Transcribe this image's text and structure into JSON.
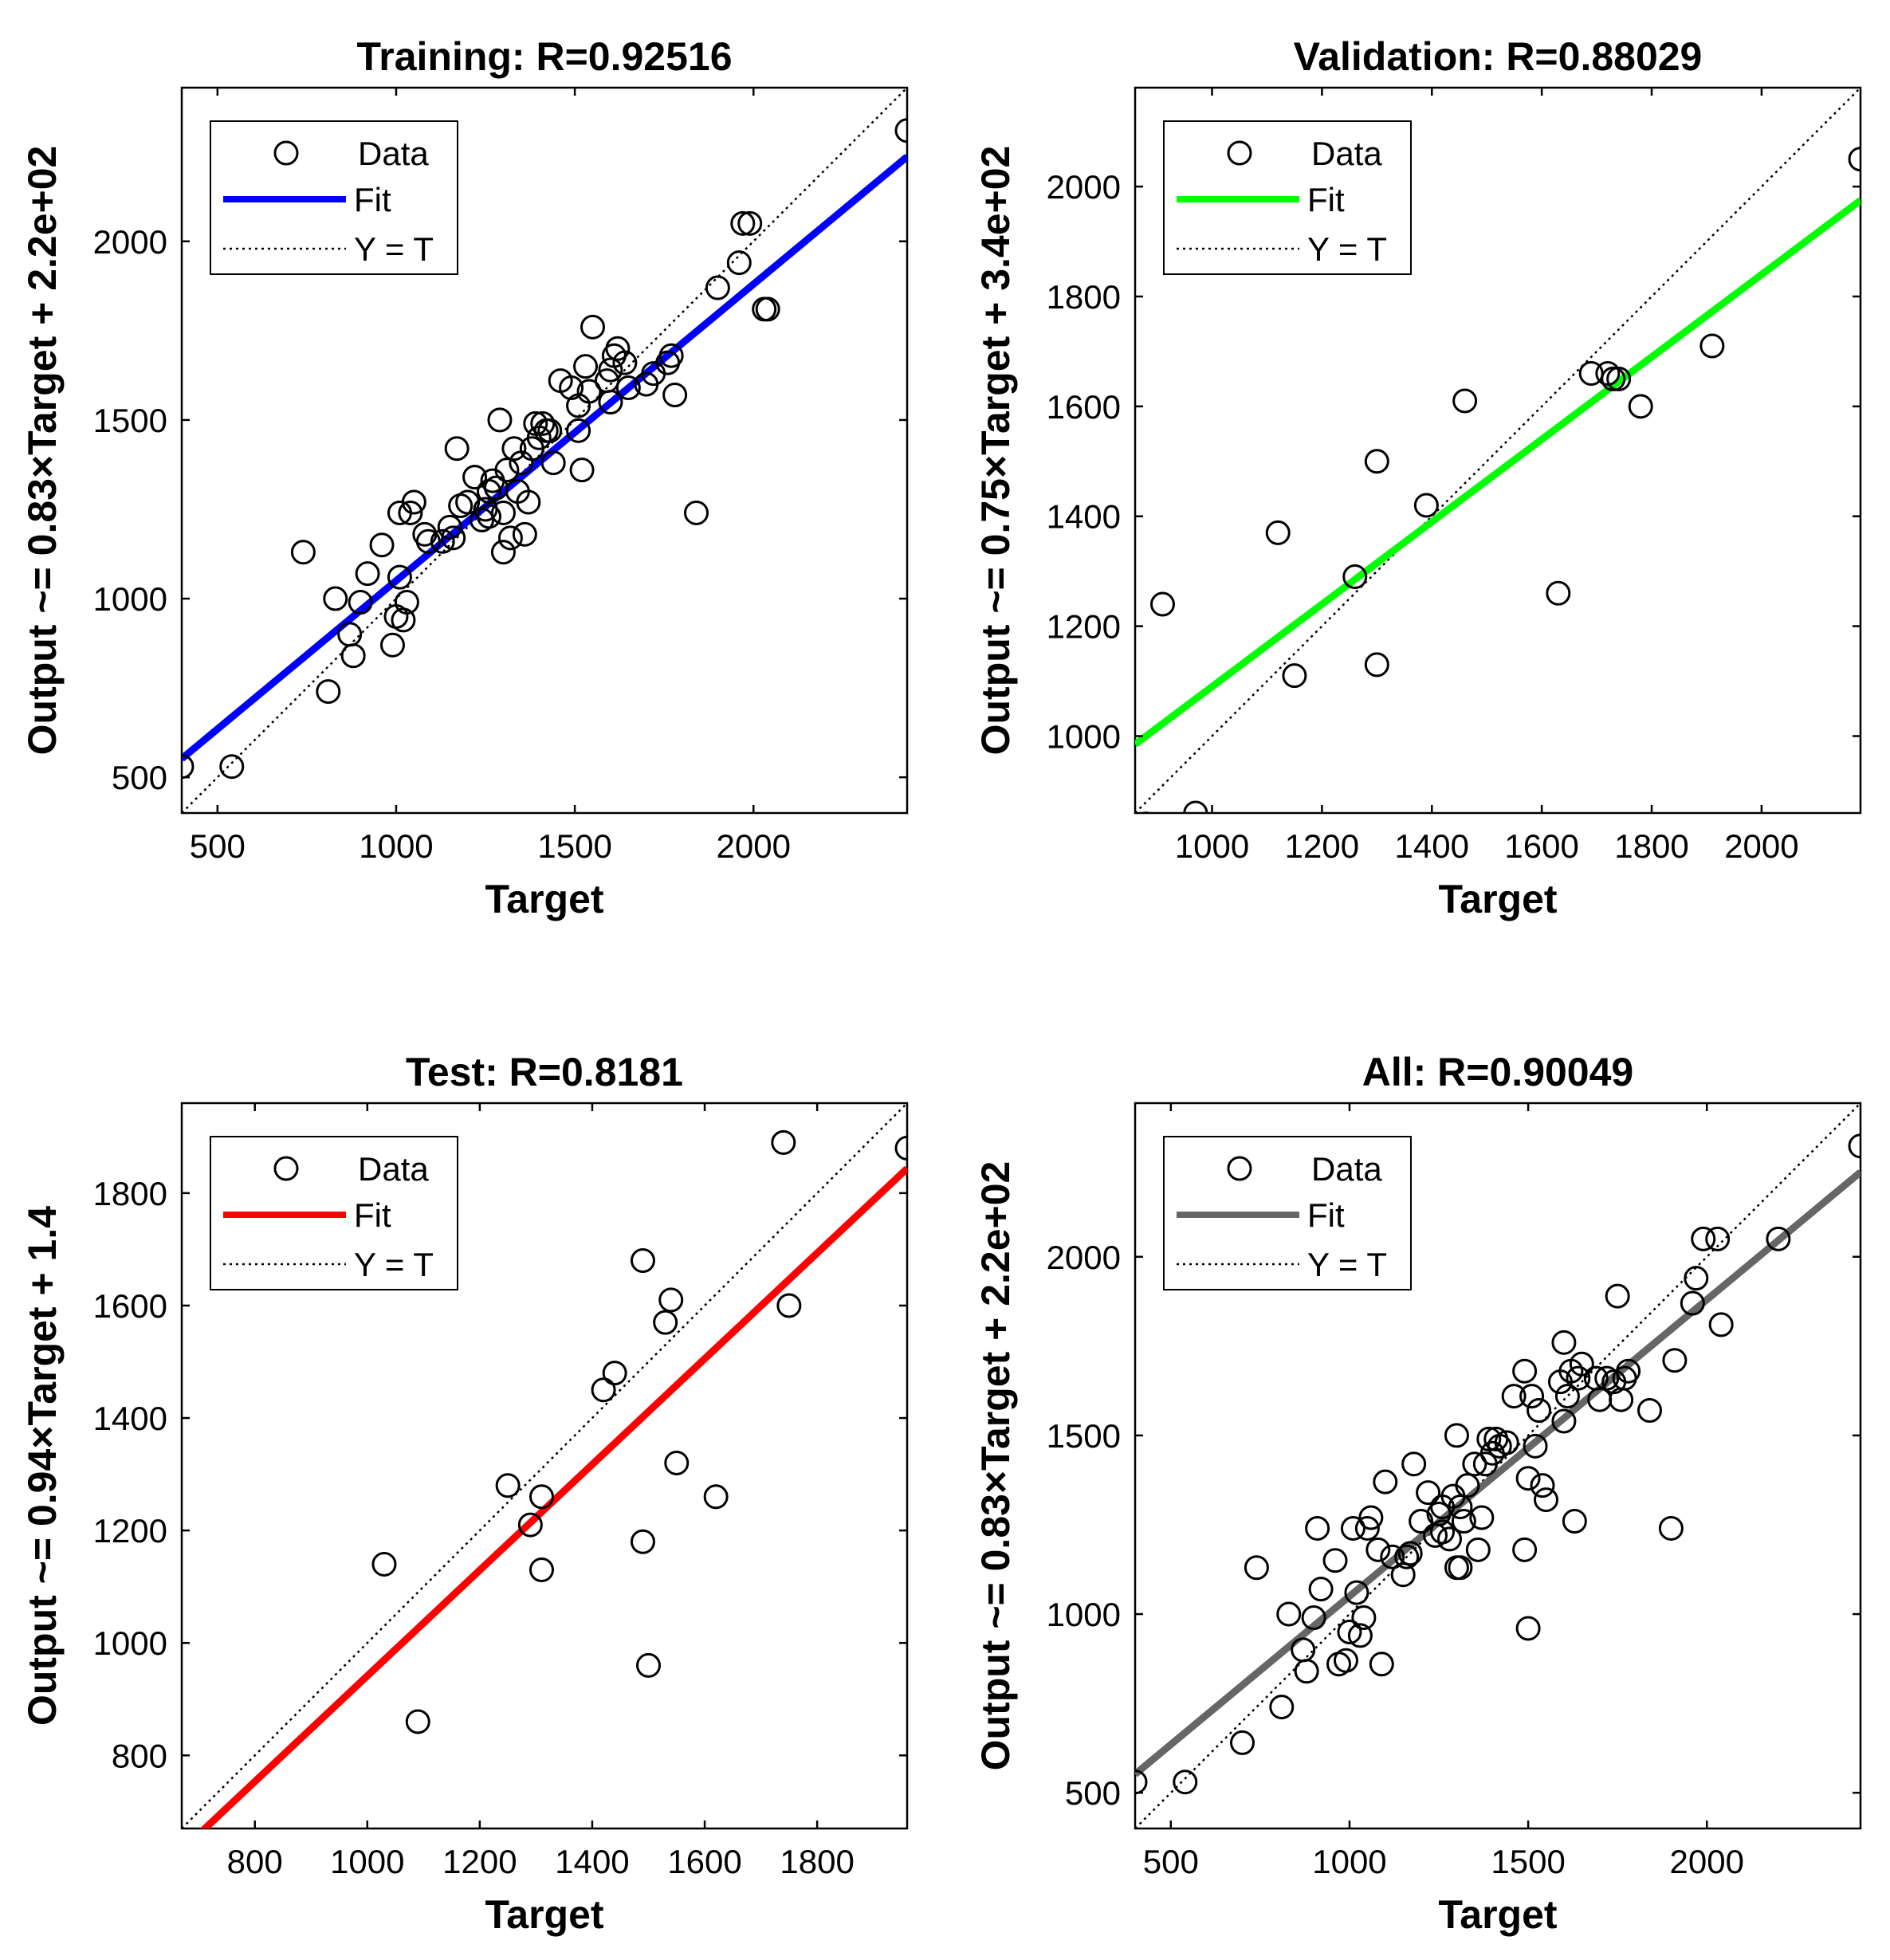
{
  "chart_data": [
    {
      "type": "scatter",
      "title": "Training: R=0.92516",
      "xlabel": "Target",
      "ylabel": "Output ~= 0.83×Target + 2.2e+02",
      "xlim": [
        400,
        2430
      ],
      "ylim": [
        400,
        2430
      ],
      "xticks": [
        500,
        1000,
        1500,
        2000
      ],
      "yticks": [
        500,
        1000,
        1500,
        2000
      ],
      "fit": {
        "slope": 0.83,
        "intercept": 220,
        "color": "#0000ff"
      },
      "legend": {
        "placement": "top-left",
        "entries": [
          "Data",
          "Fit",
          "Y = T"
        ]
      },
      "data": {
        "x": [
          400,
          540,
          740,
          810,
          830,
          870,
          880,
          900,
          920,
          960,
          990,
          1000,
          1010,
          1010,
          1020,
          1030,
          1040,
          1050,
          1080,
          1090,
          1130,
          1150,
          1160,
          1170,
          1180,
          1200,
          1220,
          1240,
          1250,
          1260,
          1260,
          1270,
          1280,
          1290,
          1300,
          1300,
          1310,
          1320,
          1330,
          1340,
          1350,
          1360,
          1370,
          1380,
          1390,
          1400,
          1410,
          1420,
          1430,
          1440,
          1460,
          1490,
          1510,
          1510,
          1520,
          1530,
          1540,
          1550,
          1590,
          1600,
          1600,
          1610,
          1620,
          1640,
          1650,
          1700,
          1720,
          1760,
          1770,
          1780,
          1840,
          1900,
          1960,
          1970,
          1990,
          2030,
          2040,
          2430
        ],
        "y": [
          530,
          530,
          1130,
          740,
          1000,
          900,
          840,
          990,
          1070,
          1150,
          870,
          950,
          1240,
          1060,
          940,
          990,
          1240,
          1270,
          1180,
          1160,
          1160,
          1200,
          1170,
          1420,
          1260,
          1270,
          1340,
          1220,
          1250,
          1300,
          1230,
          1330,
          1310,
          1500,
          1240,
          1130,
          1360,
          1170,
          1420,
          1300,
          1380,
          1180,
          1270,
          1420,
          1490,
          1450,
          1490,
          1470,
          1470,
          1380,
          1610,
          1590,
          1540,
          1470,
          1360,
          1650,
          1580,
          1760,
          1610,
          1550,
          1640,
          1680,
          1700,
          1660,
          1590,
          1600,
          1630,
          1660,
          1680,
          1570,
          1240,
          1870,
          1940,
          2050,
          2050,
          1810,
          1810,
          2310
        ]
      }
    },
    {
      "type": "scatter",
      "title": "Validation: R=0.88029",
      "xlabel": "Target",
      "ylabel": "Output ~= 0.75×Target + 3.4e+02",
      "xlim": [
        860,
        2180
      ],
      "ylim": [
        860,
        2180
      ],
      "xticks": [
        1000,
        1200,
        1400,
        1600,
        1800,
        2000
      ],
      "yticks": [
        1000,
        1200,
        1400,
        1600,
        1800,
        2000
      ],
      "fit": {
        "slope": 0.75,
        "intercept": 340,
        "color": "#00ff00"
      },
      "legend": {
        "placement": "top-left",
        "entries": [
          "Data",
          "Fit",
          "Y = T"
        ]
      },
      "data": {
        "x": [
          880,
          910,
          970,
          1120,
          1150,
          1260,
          1300,
          1300,
          1390,
          1460,
          1630,
          1690,
          1720,
          1730,
          1740,
          1780,
          1910,
          2180
        ],
        "y": [
          840,
          1240,
          860,
          1370,
          1110,
          1290,
          1500,
          1130,
          1420,
          1610,
          1260,
          1660,
          1660,
          1650,
          1650,
          1600,
          1710,
          2050
        ]
      }
    },
    {
      "type": "scatter",
      "title": "Test: R=0.8181",
      "xlabel": "Target",
      "ylabel": "Output ~= 0.94×Target + 1.4",
      "xlim": [
        670,
        1960
      ],
      "ylim": [
        670,
        1960
      ],
      "xticks": [
        800,
        1000,
        1200,
        1400,
        1600,
        1800
      ],
      "yticks": [
        800,
        1000,
        1200,
        1400,
        1600,
        1800
      ],
      "fit": {
        "slope": 0.94,
        "intercept": 1.4,
        "color": "#ff0000"
      },
      "legend": {
        "placement": "top-left",
        "entries": [
          "Data",
          "Fit",
          "Y = T"
        ]
      },
      "data": {
        "x": [
          700,
          1030,
          1090,
          1250,
          1290,
          1310,
          1310,
          1420,
          1440,
          1490,
          1490,
          1500,
          1530,
          1540,
          1550,
          1620,
          1740,
          1750,
          1960
        ],
        "y": [
          640,
          1140,
          860,
          1280,
          1210,
          1130,
          1260,
          1450,
          1480,
          1180,
          1680,
          960,
          1570,
          1610,
          1320,
          1260,
          1890,
          1600,
          1880
        ]
      }
    },
    {
      "type": "scatter",
      "title": "All: R=0.90049",
      "xlabel": "Target",
      "ylabel": "Output ~= 0.83×Target + 2.2e+02",
      "xlim": [
        400,
        2430
      ],
      "ylim": [
        400,
        2430
      ],
      "xticks": [
        500,
        1000,
        1500,
        2000
      ],
      "yticks": [
        500,
        1000,
        1500,
        2000
      ],
      "fit": {
        "slope": 0.83,
        "intercept": 220,
        "color": "#666666"
      },
      "legend": {
        "placement": "top-left",
        "entries": [
          "Data",
          "Fit",
          "Y = T"
        ]
      },
      "data": {
        "x": [
          400,
          540,
          700,
          740,
          810,
          830,
          870,
          880,
          900,
          910,
          920,
          960,
          970,
          990,
          1000,
          1010,
          1020,
          1030,
          1040,
          1050,
          1060,
          1080,
          1090,
          1100,
          1120,
          1150,
          1160,
          1170,
          1180,
          1200,
          1220,
          1240,
          1250,
          1260,
          1260,
          1280,
          1290,
          1300,
          1300,
          1310,
          1310,
          1320,
          1330,
          1350,
          1360,
          1370,
          1380,
          1390,
          1400,
          1410,
          1420,
          1440,
          1460,
          1490,
          1490,
          1500,
          1500,
          1510,
          1520,
          1530,
          1540,
          1550,
          1590,
          1600,
          1600,
          1610,
          1620,
          1630,
          1640,
          1650,
          1690,
          1700,
          1720,
          1740,
          1750,
          1760,
          1770,
          1780,
          1840,
          1900,
          1910,
          1960,
          1970,
          1990,
          2030,
          2040,
          2200,
          2430
        ],
        "y": [
          530,
          530,
          640,
          1130,
          740,
          1000,
          900,
          840,
          990,
          1240,
          1070,
          1150,
          860,
          870,
          950,
          1240,
          1060,
          940,
          990,
          1240,
          1270,
          1180,
          860,
          1370,
          1160,
          1110,
          1160,
          1170,
          1420,
          1260,
          1340,
          1220,
          1280,
          1300,
          1230,
          1210,
          1330,
          1500,
          1130,
          1130,
          1300,
          1260,
          1360,
          1420,
          1180,
          1270,
          1420,
          1490,
          1450,
          1490,
          1470,
          1480,
          1610,
          1180,
          1680,
          960,
          1380,
          1610,
          1470,
          1570,
          1360,
          1320,
          1650,
          1540,
          1760,
          1610,
          1680,
          1260,
          1660,
          1700,
          1660,
          1600,
          1660,
          1650,
          1890,
          1600,
          1660,
          1680,
          1570,
          1240,
          1710,
          1870,
          1940,
          2050,
          2050,
          1810,
          2050,
          2310
        ]
      }
    }
  ]
}
